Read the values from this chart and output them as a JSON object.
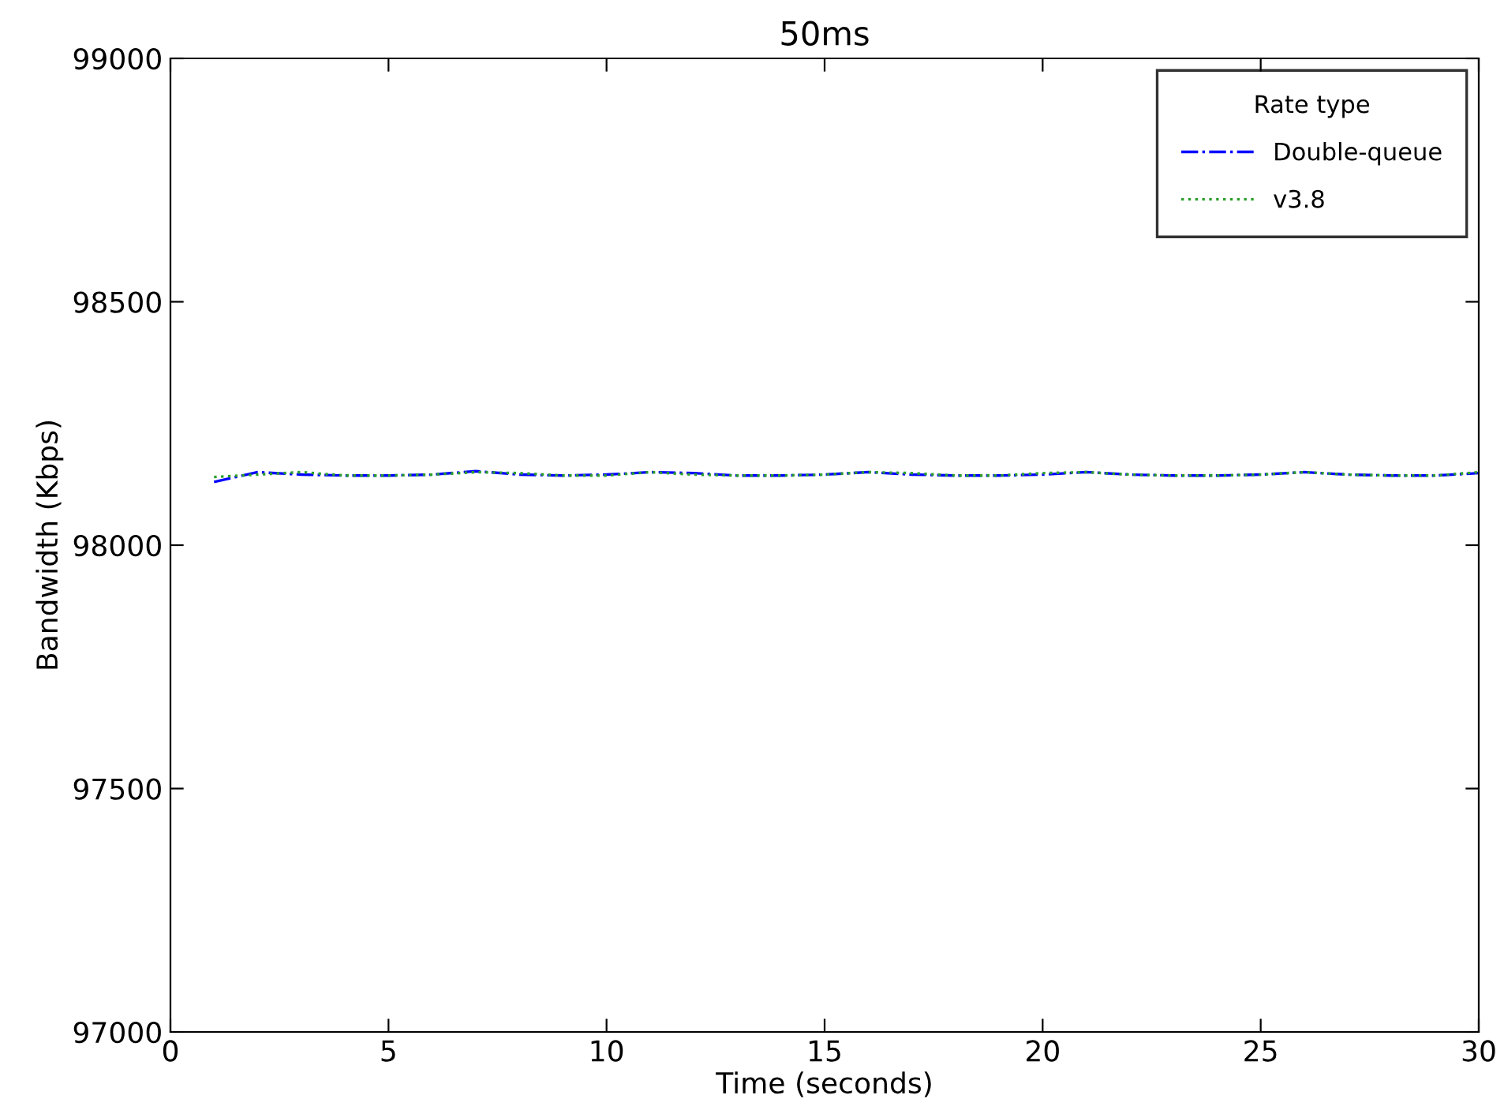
{
  "chart_data": {
    "type": "line",
    "title": "50ms",
    "xlabel": "Time (seconds)",
    "ylabel": "Bandwidth (Kbps)",
    "legend_title": "Rate type",
    "x": [
      1,
      2,
      3,
      4,
      5,
      6,
      7,
      8,
      9,
      10,
      11,
      12,
      13,
      14,
      15,
      16,
      17,
      18,
      19,
      20,
      21,
      22,
      23,
      24,
      25,
      26,
      27,
      28,
      29,
      30
    ],
    "series": [
      {
        "name": "Double-queue",
        "color": "#0000ff",
        "line_style": "dashdot",
        "values": [
          98130,
          98150,
          98145,
          98143,
          98143,
          98145,
          98152,
          98145,
          98143,
          98145,
          98150,
          98148,
          98143,
          98143,
          98145,
          98150,
          98145,
          98143,
          98143,
          98145,
          98150,
          98145,
          98143,
          98143,
          98145,
          98150,
          98145,
          98143,
          98143,
          98148
        ]
      },
      {
        "name": "v3.8",
        "color": "#2ca02c",
        "line_style": "dotted",
        "values": [
          98140,
          98145,
          98150,
          98143,
          98143,
          98145,
          98150,
          98148,
          98143,
          98143,
          98150,
          98145,
          98143,
          98143,
          98145,
          98150,
          98148,
          98143,
          98143,
          98148,
          98150,
          98145,
          98143,
          98143,
          98145,
          98150,
          98145,
          98143,
          98143,
          98150
        ]
      }
    ],
    "xlim": [
      0,
      30
    ],
    "xticks": [
      0,
      5,
      10,
      15,
      20,
      25,
      30
    ],
    "ylim": [
      97000,
      99000
    ],
    "yticks": [
      97000,
      97500,
      98000,
      98500,
      99000
    ],
    "grid": false,
    "legend": "top right"
  }
}
